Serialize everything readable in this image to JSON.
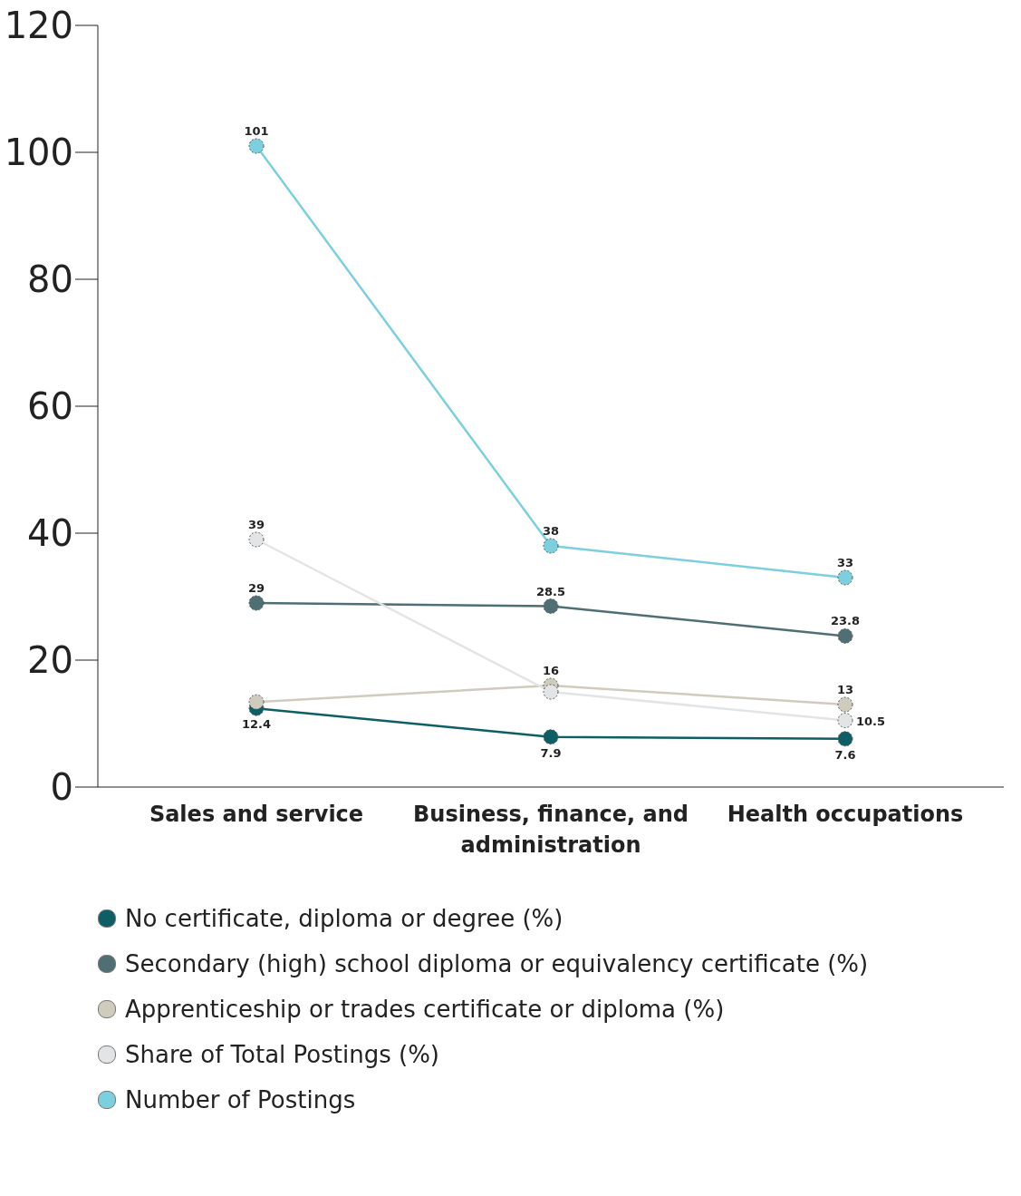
{
  "chart_data": {
    "type": "line",
    "categories": [
      "Sales and service",
      "Business, finance, and administration",
      "Health occupations"
    ],
    "series": [
      {
        "name": "No certificate, diploma or degree (%)",
        "color": "#0e5e66",
        "values": [
          12.4,
          7.9,
          7.6
        ],
        "value_labels": [
          "12.4",
          "7.9",
          "7.6"
        ]
      },
      {
        "name": "Secondary (high) school diploma or equivalency certificate (%)",
        "color": "#4f6f75",
        "values": [
          29,
          28.5,
          23.8
        ],
        "value_labels": [
          "29",
          "28.5",
          "23.8"
        ]
      },
      {
        "name": "Apprenticeship or trades certificate or diploma (%)",
        "color": "#cfcbbd",
        "values": [
          13.4,
          16,
          13
        ],
        "value_labels": [
          null,
          "16",
          "13"
        ]
      },
      {
        "name": "Share of Total Postings (%)",
        "color": "#e3e4e6",
        "values": [
          39,
          15,
          10.5
        ],
        "value_labels": [
          "39",
          null,
          "10.5"
        ]
      },
      {
        "name": "Number of Postings",
        "color": "#7ccfdf",
        "values": [
          101,
          38,
          33
        ],
        "value_labels": [
          "101",
          "38",
          "33"
        ]
      }
    ],
    "ylim": [
      0,
      120
    ],
    "yticks": [
      0,
      20,
      40,
      60,
      80,
      100,
      120
    ],
    "grid": false,
    "legend": "bottom",
    "marker": "circle",
    "line_style": "solid"
  }
}
